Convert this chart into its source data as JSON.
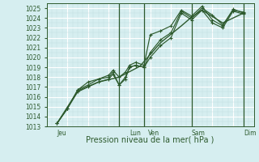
{
  "xlabel": "Pression niveau de la mer( hPa )",
  "bg_color": "#d6eef0",
  "plot_bg_color": "#d6eef0",
  "line_color": "#2d5a2d",
  "grid_major_color": "#ffffff",
  "grid_minor_color": "#c0dde0",
  "ylim": [
    1013,
    1025.5
  ],
  "yticks": [
    1013,
    1014,
    1015,
    1016,
    1017,
    1018,
    1019,
    1020,
    1021,
    1022,
    1023,
    1024,
    1025
  ],
  "xlim": [
    0,
    10.0
  ],
  "day_labels": [
    "Jeu",
    "Lun",
    "Ven",
    "Sam",
    "Dim"
  ],
  "day_positions": [
    0.5,
    4.0,
    4.9,
    7.0,
    9.5
  ],
  "vline_positions": [
    3.5,
    4.7,
    7.0,
    9.5
  ],
  "series1": [
    [
      0.5,
      1013.3
    ],
    [
      1.0,
      1014.8
    ],
    [
      1.5,
      1016.7
    ],
    [
      2.0,
      1017.2
    ],
    [
      2.5,
      1017.8
    ],
    [
      3.0,
      1018.0
    ],
    [
      3.2,
      1018.5
    ],
    [
      3.5,
      1017.2
    ],
    [
      3.8,
      1018.0
    ],
    [
      4.0,
      1019.0
    ],
    [
      4.3,
      1019.2
    ],
    [
      4.7,
      1019.0
    ],
    [
      5.0,
      1020.5
    ],
    [
      5.5,
      1021.8
    ],
    [
      6.0,
      1022.5
    ],
    [
      6.5,
      1024.7
    ],
    [
      7.0,
      1024.0
    ],
    [
      7.5,
      1025.0
    ],
    [
      8.0,
      1024.3
    ],
    [
      8.5,
      1023.3
    ],
    [
      9.0,
      1024.8
    ],
    [
      9.5,
      1024.6
    ]
  ],
  "series2": [
    [
      0.5,
      1013.3
    ],
    [
      1.0,
      1014.8
    ],
    [
      1.5,
      1016.7
    ],
    [
      2.0,
      1017.5
    ],
    [
      2.5,
      1017.8
    ],
    [
      3.0,
      1018.2
    ],
    [
      3.2,
      1018.7
    ],
    [
      3.5,
      1018.0
    ],
    [
      3.8,
      1018.5
    ],
    [
      4.0,
      1019.2
    ],
    [
      4.3,
      1019.5
    ],
    [
      4.7,
      1019.2
    ],
    [
      5.0,
      1022.3
    ],
    [
      5.5,
      1022.7
    ],
    [
      6.0,
      1023.2
    ],
    [
      6.5,
      1024.8
    ],
    [
      7.0,
      1024.2
    ],
    [
      7.5,
      1025.2
    ],
    [
      8.0,
      1023.8
    ],
    [
      8.5,
      1023.2
    ],
    [
      9.0,
      1024.9
    ],
    [
      9.5,
      1024.5
    ]
  ],
  "series3": [
    [
      0.5,
      1013.3
    ],
    [
      1.0,
      1014.8
    ],
    [
      1.5,
      1016.5
    ],
    [
      2.0,
      1017.0
    ],
    [
      2.5,
      1017.5
    ],
    [
      3.0,
      1017.8
    ],
    [
      3.2,
      1018.3
    ],
    [
      3.5,
      1017.2
    ],
    [
      3.8,
      1017.8
    ],
    [
      4.0,
      1019.0
    ],
    [
      4.3,
      1019.2
    ],
    [
      4.7,
      1019.0
    ],
    [
      5.0,
      1020.0
    ],
    [
      5.5,
      1021.2
    ],
    [
      6.0,
      1022.0
    ],
    [
      6.5,
      1024.5
    ],
    [
      7.0,
      1023.8
    ],
    [
      7.5,
      1024.8
    ],
    [
      8.0,
      1023.5
    ],
    [
      8.5,
      1023.0
    ],
    [
      9.0,
      1024.7
    ],
    [
      9.5,
      1024.4
    ]
  ],
  "smooth_line": [
    [
      0.5,
      1013.3
    ],
    [
      1.5,
      1016.6
    ],
    [
      2.5,
      1017.5
    ],
    [
      3.5,
      1018.0
    ],
    [
      4.5,
      1019.1
    ],
    [
      5.5,
      1021.5
    ],
    [
      6.5,
      1023.2
    ],
    [
      7.0,
      1024.1
    ],
    [
      7.5,
      1024.8
    ],
    [
      8.5,
      1023.5
    ],
    [
      9.5,
      1024.5
    ]
  ]
}
